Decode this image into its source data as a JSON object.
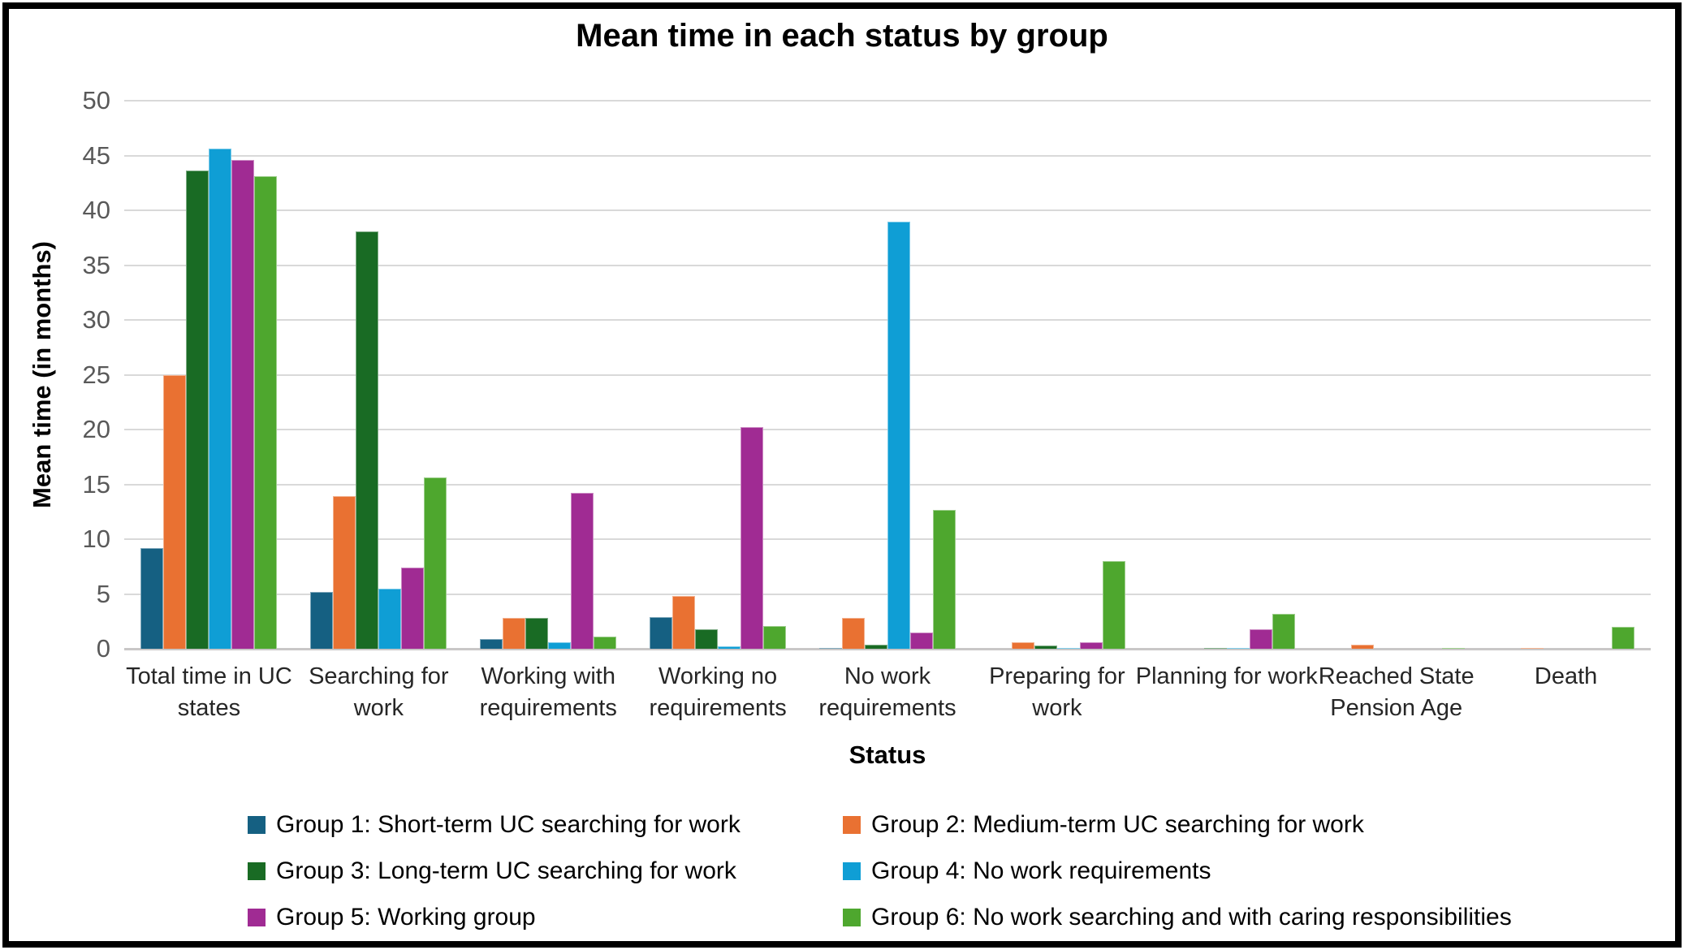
{
  "chart_data": {
    "type": "bar",
    "title": "Mean time in each status by group",
    "xlabel": "Status",
    "ylabel": "Mean time (in months)",
    "ylim": [
      0,
      50
    ],
    "ytick_step": 5,
    "grid": true,
    "legend_position": "bottom",
    "gridline_color": "#D9D9D9",
    "tick_label_color": "#595959",
    "frame_border_color": "#000000",
    "categories": [
      "Total time in UC states",
      "Searching for work",
      "Working with requirements",
      "Working no requirements",
      "No work requirements",
      "Preparing for work",
      "Planning for work",
      "Reached State Pension Age",
      "Death"
    ],
    "series": [
      {
        "name": "Group 1: Short-term UC searching for work",
        "color": "#156082",
        "values": [
          9.2,
          5.2,
          0.9,
          2.9,
          0.1,
          0,
          0,
          0,
          0
        ]
      },
      {
        "name": "Group 2: Medium-term UC searching for work",
        "color": "#E97132",
        "values": [
          25,
          13.9,
          2.8,
          4.8,
          2.8,
          0.6,
          0,
          0.4,
          0.1
        ]
      },
      {
        "name": "Group 3: Long-term UC searching for work",
        "color": "#196B24",
        "values": [
          43.6,
          38.1,
          2.8,
          1.8,
          0.4,
          0.3,
          0.1,
          0,
          0
        ]
      },
      {
        "name": "Group 4: No work requirements",
        "color": "#0F9ED5",
        "values": [
          45.6,
          5.5,
          0.6,
          0.2,
          39,
          0.1,
          0.1,
          0,
          0
        ]
      },
      {
        "name": "Group 5: Working group",
        "color": "#A02B93",
        "values": [
          44.6,
          7.4,
          14.2,
          20.2,
          1.5,
          0.6,
          1.8,
          0,
          0
        ]
      },
      {
        "name": "Group 6: No work searching and with caring responsibilities",
        "color": "#4EA72E",
        "values": [
          43.1,
          15.6,
          1.1,
          2.1,
          12.7,
          8,
          3.2,
          0.1,
          2
        ]
      }
    ]
  }
}
